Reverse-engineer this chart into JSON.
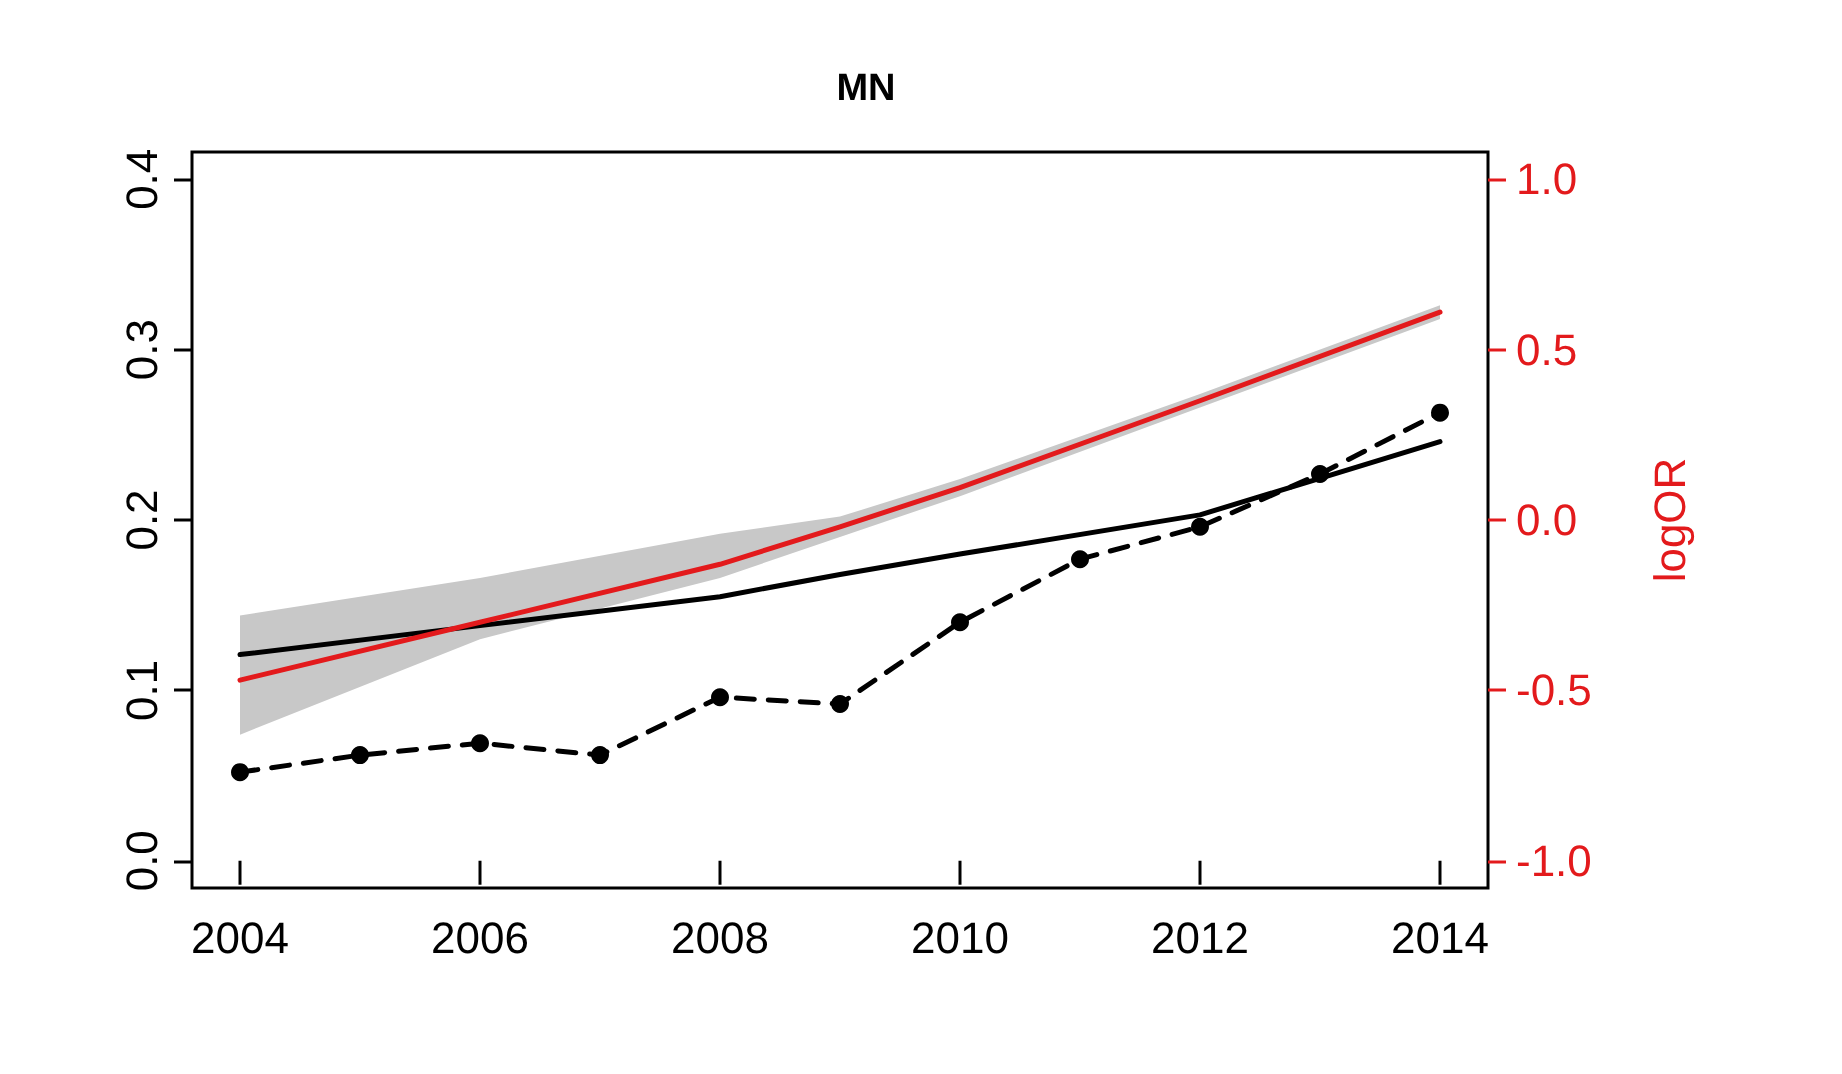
{
  "chart_data": {
    "type": "line",
    "title": "MN",
    "y2label": "logOR",
    "x": [
      2004,
      2005,
      2006,
      2007,
      2008,
      2009,
      2010,
      2011,
      2012,
      2013,
      2014
    ],
    "xlim": [
      2003.6,
      2014.4
    ],
    "xticks": [
      2004,
      2006,
      2008,
      2010,
      2012,
      2014
    ],
    "ylim": [
      -0.016,
      0.416
    ],
    "yticks": [
      {
        "value": 0,
        "label": "0.0"
      },
      {
        "value": 0.1,
        "label": "0.1"
      },
      {
        "value": 0.2,
        "label": "0.2"
      },
      {
        "value": 0.3,
        "label": "0.3"
      },
      {
        "value": 0.4,
        "label": "0.4"
      }
    ],
    "y2lim": [
      -1.08,
      1.08
    ],
    "y2ticks": [
      {
        "value": -1,
        "label": "-1.0"
      },
      {
        "value": -0.5,
        "label": "-0.5"
      },
      {
        "value": 0,
        "label": "0.0"
      },
      {
        "value": 0.5,
        "label": "0.5"
      },
      {
        "value": 1,
        "label": "1.0"
      }
    ],
    "series": [
      {
        "color": "#000000",
        "marker": "circle",
        "line_style": "dashed",
        "values": [
          0.052,
          0.062,
          0.069,
          0.062,
          0.096,
          0.092,
          0.14,
          0.177,
          0.196,
          0.227,
          0.263
        ]
      },
      {
        "color": "#000000",
        "marker": "none",
        "line_style": "solid",
        "x": [
          2004,
          2006,
          2008,
          2009,
          2010,
          2012,
          2014
        ],
        "values": [
          0.121,
          0.138,
          0.155,
          0.168,
          0.18,
          0.203,
          0.246
        ]
      },
      {
        "color": "#e31a1c",
        "marker": "none",
        "line_style": "solid",
        "axis": "y2",
        "x": [
          2004,
          2006,
          2008,
          2009,
          2010,
          2012,
          2014
        ],
        "values": [
          -0.47,
          -0.3,
          -0.13,
          -0.02,
          0.095,
          0.35,
          0.61
        ],
        "lower": [
          -0.63,
          -0.35,
          -0.17,
          -0.05,
          0.07,
          0.33,
          0.59
        ],
        "upper": [
          -0.28,
          -0.17,
          -0.04,
          0.01,
          0.12,
          0.37,
          0.63
        ]
      }
    ]
  }
}
